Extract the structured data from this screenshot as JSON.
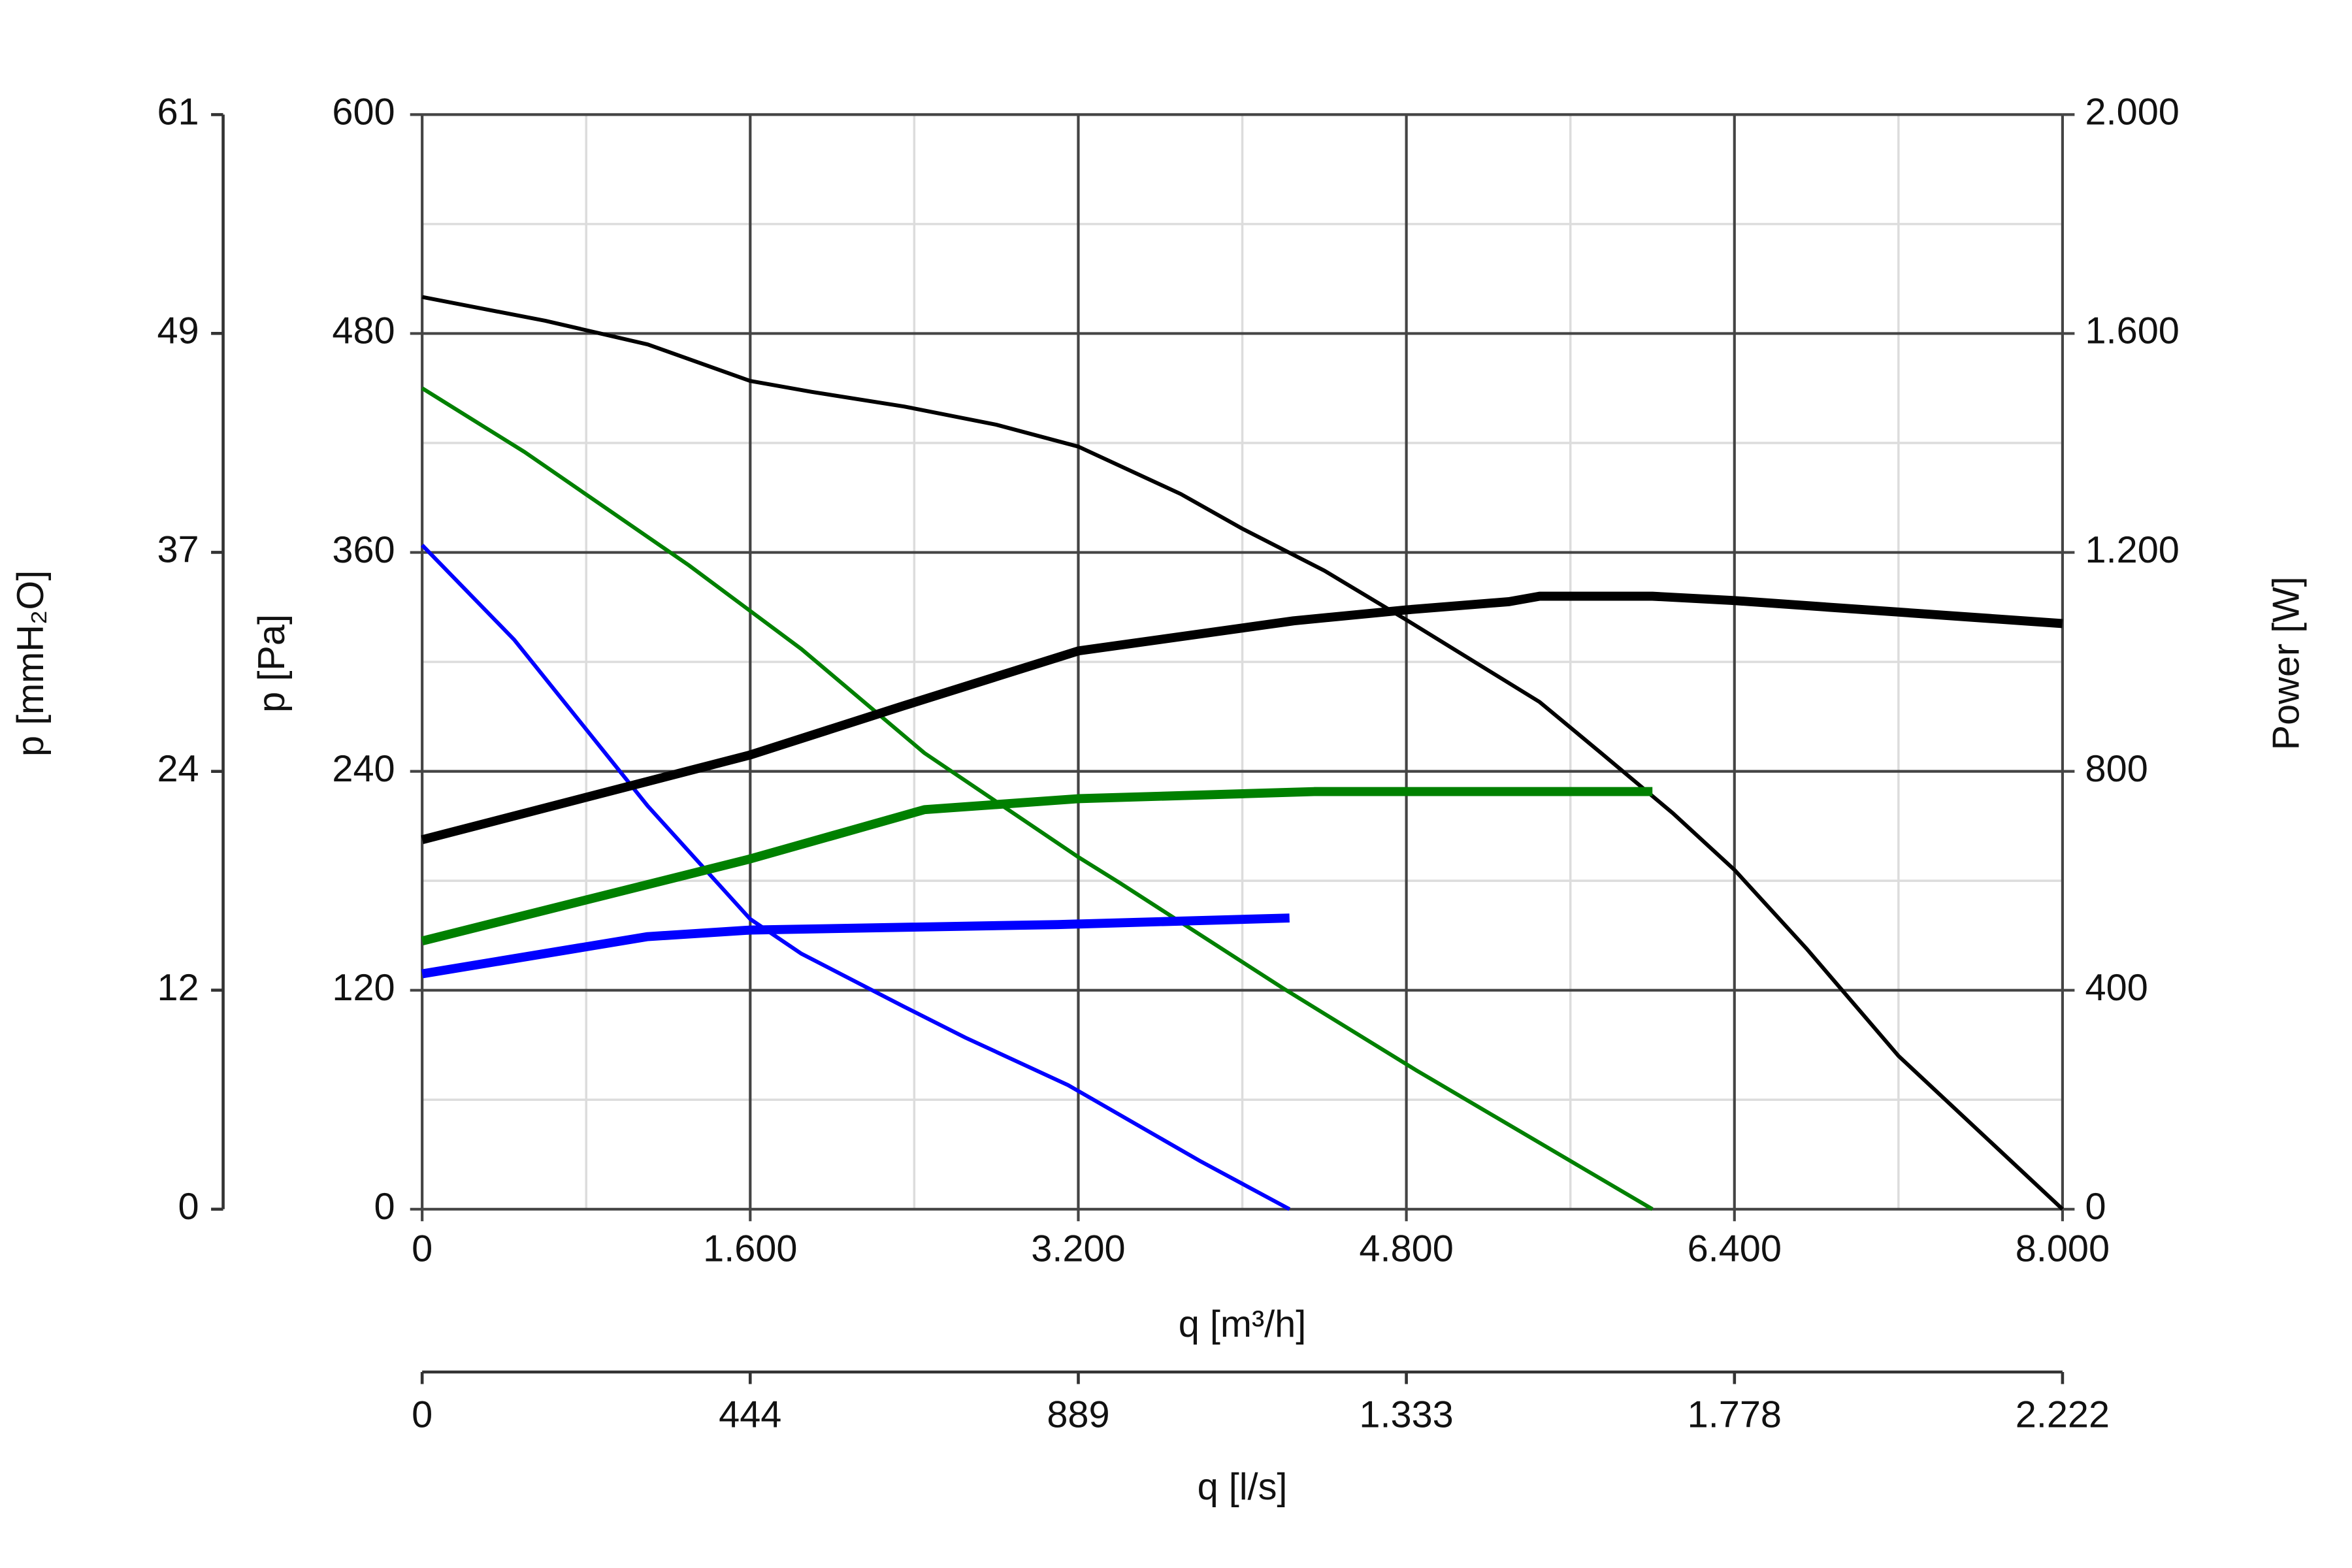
{
  "chart_data": {
    "type": "line",
    "x_label": "q [m³/h]",
    "y_label": "p [Pa]",
    "y2_label": "Power [W]",
    "xlim": [
      0,
      8000
    ],
    "xticks": [
      0,
      {
        "value": 1600,
        "label": "1.600"
      },
      {
        "value": 3200,
        "label": "3.200"
      },
      {
        "value": 4800,
        "label": "4.800"
      },
      {
        "value": 6400,
        "label": "6.400"
      },
      {
        "value": 8000,
        "label": "8.000"
      }
    ],
    "x_minor_ticks": [
      800,
      2400,
      4000,
      5600,
      7200
    ],
    "ylim": [
      0,
      600
    ],
    "yticks": [
      0,
      120,
      240,
      360,
      480,
      600
    ],
    "y_minor_ticks": [
      60,
      180,
      300,
      420,
      540
    ],
    "y2lim": [
      0,
      2000
    ],
    "y2ticks": [
      0,
      400,
      800,
      {
        "value": 1200,
        "label": "1.200"
      },
      {
        "value": 1600,
        "label": "1.600"
      },
      {
        "value": 2000,
        "label": "2.000"
      }
    ],
    "mmh2o_axis": {
      "label": "p [mmH₂O]",
      "lim": [
        0,
        61.18
      ],
      "ticks": [
        0,
        {
          "value": 12.24,
          "label": "12"
        },
        {
          "value": 24.47,
          "label": "24"
        },
        {
          "value": 36.71,
          "label": "37"
        },
        {
          "value": 48.95,
          "label": "49"
        },
        {
          "value": 61.18,
          "label": "61"
        }
      ]
    },
    "ls_axis": {
      "label": "q [l/s]",
      "lim": [
        0,
        2222.2
      ],
      "ticks": [
        0,
        {
          "value": 444.4,
          "label": "444"
        },
        {
          "value": 888.9,
          "label": "889"
        },
        {
          "value": 1333.3,
          "label": "1.333"
        },
        {
          "value": 1777.8,
          "label": "1.778"
        },
        {
          "value": 2222.2,
          "label": "2.222"
        }
      ]
    },
    "grid": true,
    "series": [
      {
        "color": "#000000",
        "axis": "y",
        "x": [
          0,
          600,
          1100,
          1600,
          1900,
          2350,
          2800,
          3200,
          3700,
          4000,
          4400,
          4800,
          5450,
          5750,
          6100,
          6400,
          6750,
          7200,
          8000
        ],
        "values": [
          500,
          487,
          474,
          454,
          448,
          440,
          430,
          418,
          392,
          373,
          350,
          323,
          278,
          250,
          217,
          186,
          143,
          84,
          0
        ]
      },
      {
        "color": "#008000",
        "axis": "y",
        "x": [
          0,
          500,
          1300,
          1850,
          2450,
          3200,
          3400,
          4200,
          4850,
          6000
        ],
        "values": [
          450,
          415,
          353,
          307,
          250,
          193,
          179,
          121,
          76,
          0
        ]
      },
      {
        "color": "#0000ff",
        "axis": "y",
        "x": [
          0,
          450,
          1100,
          1600,
          1850,
          2350,
          2650,
          3150,
          3800,
          4230
        ],
        "values": [
          364,
          312,
          221,
          159,
          140,
          111,
          94,
          68,
          26,
          0
        ]
      },
      {
        "color": "#000000",
        "axis": "y2",
        "x": [
          0,
          1600,
          2350,
          3200,
          4250,
          4800,
          5300,
          5450,
          6000,
          6400,
          8000
        ],
        "values": [
          675,
          830,
          920,
          1020,
          1075,
          1095,
          1110,
          1120,
          1120,
          1112,
          1070
        ]
      },
      {
        "color": "#008000",
        "axis": "y2",
        "x": [
          0,
          1600,
          2450,
          3200,
          4350,
          6000
        ],
        "values": [
          490,
          640,
          730,
          750,
          763,
          763
        ]
      },
      {
        "color": "#0000ff",
        "axis": "y2",
        "x": [
          0,
          1100,
          1600,
          3100,
          4230
        ],
        "values": [
          430,
          498,
          510,
          520,
          532
        ]
      }
    ]
  }
}
